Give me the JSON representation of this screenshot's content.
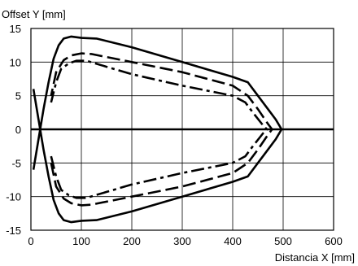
{
  "chart_data": {
    "type": "line",
    "xlabel": "Distancia X [mm]",
    "ylabel": "Offset Y [mm]",
    "xlim": [
      0,
      600
    ],
    "ylim": [
      -15,
      15
    ],
    "xticks": [
      0,
      100,
      200,
      300,
      400,
      500,
      600
    ],
    "yticks": [
      15,
      10,
      5,
      0,
      -5,
      -10,
      -15
    ],
    "xtick_labels": [
      "0",
      "100",
      "200",
      "300",
      "400",
      "500",
      "600"
    ],
    "ytick_labels": [
      "15",
      "10",
      "5",
      "0",
      "-5",
      "-10",
      "-15"
    ],
    "grid": true,
    "legend": false,
    "series": [
      {
        "style": "solid",
        "x": [
          5,
          15,
          25,
          35,
          45,
          55,
          65,
          80,
          100,
          130,
          200,
          300,
          400,
          430,
          450,
          470,
          485,
          497,
          485,
          470,
          450,
          430,
          400,
          300,
          200,
          130,
          100,
          80,
          65,
          55,
          45,
          35,
          25,
          15,
          5
        ],
        "y": [
          6,
          1.5,
          -3,
          -7,
          -10.5,
          -12.5,
          -13.5,
          -13.8,
          -13.6,
          -13.5,
          -12.2,
          -10,
          -7.8,
          -7,
          -5,
          -3,
          -1.5,
          0,
          1.5,
          3,
          5,
          7,
          7.8,
          10,
          12.2,
          13.5,
          13.6,
          13.8,
          13.5,
          12.5,
          10.5,
          7,
          3,
          -1.5,
          -6
        ]
      },
      {
        "style": "dashed",
        "x": [
          40,
          50,
          65,
          80,
          100,
          120,
          200,
          300,
          400,
          430,
          450,
          470,
          478,
          470,
          450,
          430,
          400,
          300,
          200,
          120,
          100,
          80,
          65,
          50,
          40
        ],
        "y": [
          -5,
          -8.5,
          -10.3,
          -11,
          -11.3,
          -11.2,
          -10,
          -8.5,
          -6.5,
          -5,
          -3,
          -0.8,
          0,
          0.8,
          3,
          5,
          6.5,
          8.5,
          10,
          11.2,
          11.3,
          11,
          10.3,
          8.5,
          5
        ]
      },
      {
        "style": "dash-dot",
        "x": [
          40,
          50,
          60,
          75,
          90,
          110,
          150,
          200,
          300,
          400,
          425,
          440,
          460,
          468,
          460,
          440,
          425,
          400,
          300,
          200,
          150,
          110,
          90,
          75,
          60,
          50,
          40
        ],
        "y": [
          -4,
          -7,
          -9,
          -9.8,
          -10.2,
          -10.2,
          -9.3,
          -8.2,
          -6.5,
          -5,
          -4,
          -2.5,
          -0.6,
          0,
          0.6,
          2.5,
          4,
          5,
          6.5,
          8.2,
          9.3,
          10.2,
          10.2,
          9.8,
          9,
          7,
          4
        ]
      }
    ]
  }
}
